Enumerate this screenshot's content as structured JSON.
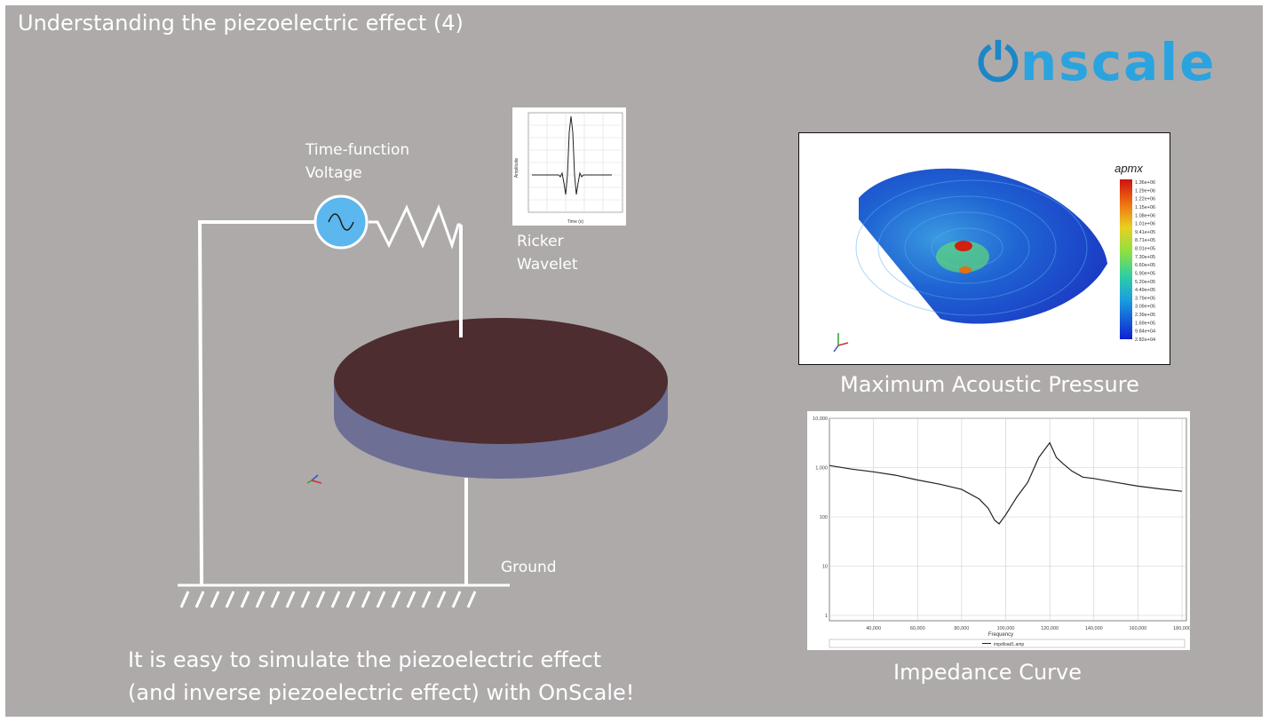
{
  "title": "Understanding the piezoelectric effect (4)",
  "logo_text": "onscale",
  "circuit": {
    "source_label_line1": "Time-function",
    "source_label_line2": "Voltage",
    "wavelet_label_line1": "Ricker",
    "wavelet_label_line2": "Wavelet",
    "ground_label": "Ground",
    "disc_top_color": "#4d2d2f",
    "disc_side_color": "#6e6f95",
    "source_color": "#5bb7ed"
  },
  "ricker_plot": {
    "ylabel": "Amplitude",
    "xlabel": "Time (s)"
  },
  "pressure_panel": {
    "caption": "Maximum Acoustic Pressure",
    "legend_title": "apmx",
    "legend_values": [
      "1.36e+06",
      "1.29e+06",
      "1.22e+06",
      "1.15e+06",
      "1.08e+06",
      "1.01e+06",
      "9.41e+05",
      "8.71e+05",
      "8.01e+05",
      "7.30e+05",
      "6.60e+05",
      "5.90e+05",
      "5.20e+05",
      "4.49e+05",
      "3.79e+05",
      "3.09e+05",
      "2.39e+05",
      "1.69e+05",
      "9.84e+04",
      "2.82e+04"
    ]
  },
  "impedance_panel": {
    "caption": "Impedance Curve",
    "y_ticks": [
      "10,000",
      "1,000",
      "100",
      "10",
      "1"
    ],
    "x_ticks": [
      "40,000",
      "60,000",
      "80,000",
      "100,000",
      "120,000",
      "140,000",
      "160,000",
      "180,000"
    ],
    "xlabel": "Frequency",
    "legend": "impdload1.amp"
  },
  "caption_line1": "It is easy to simulate the piezoelectric effect",
  "caption_line2": "(and inverse piezoelectric effect) with OnScale!",
  "chart_data": {
    "type": "line",
    "x": [
      20000,
      30000,
      40000,
      50000,
      60000,
      70000,
      80000,
      88000,
      92000,
      95000,
      97000,
      100000,
      105000,
      110000,
      115000,
      120000,
      123000,
      126000,
      130000,
      135000,
      140000,
      150000,
      160000,
      170000,
      180000
    ],
    "series": [
      {
        "name": "impdload1.amp",
        "values": [
          1100,
          930,
          820,
          700,
          560,
          460,
          360,
          230,
          150,
          85,
          72,
          110,
          250,
          500,
          1600,
          3200,
          1600,
          1200,
          850,
          640,
          600,
          500,
          420,
          370,
          330
        ]
      }
    ],
    "xlabel": "Frequency",
    "ylabel": "",
    "ylim": [
      1,
      10000
    ],
    "y_scale": "log",
    "grid": true,
    "legend": "bottom"
  }
}
